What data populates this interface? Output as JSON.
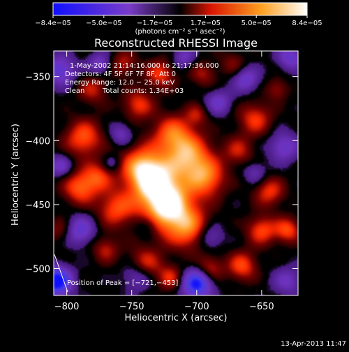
{
  "chart_data": {
    "type": "heatmap",
    "title": "Reconstructed RHESSI Image",
    "xlabel": "Heliocentric X (arcsec)",
    "ylabel": "Heliocentric Y (arcsec)",
    "xlim": [
      -810,
      -622
    ],
    "ylim": [
      -521,
      -330
    ],
    "x_ticks": [
      -800,
      -750,
      -700,
      -650
    ],
    "y_ticks": [
      -500,
      -450,
      -400,
      -350
    ],
    "x_tick_labels": [
      "−800",
      "−750",
      "−700",
      "−650"
    ],
    "y_tick_labels": [
      "−500",
      "−450",
      "−400",
      "−350"
    ],
    "colorbar": {
      "unit_label": "(photons cm⁻² s⁻¹ asec⁻²)",
      "range": [
        -8.4e-05,
        8.4e-05
      ],
      "tick_labels": [
        "−8.4e−05",
        "−5.0e−05",
        "−1.7e−05",
        "1.7e−05",
        "5.0e−05",
        "8.4e−05"
      ],
      "colors": [
        "#1010ff",
        "#7a3cc8",
        "#ff2a00",
        "#ff9a20",
        "#ffffff"
      ]
    },
    "annotations": {
      "time_range": "1-May-2002 21:14:16.000 to 21:17:36.000",
      "detectors": "Detectors: 4F 5F 6F 7F 8F, Att 0",
      "energy_range": "Energy Range: 12.0 − 25.0 keV",
      "clean": "Clean",
      "total_counts": "Total counts: 1.34E+03",
      "peak_position": "Position of Peak = [−721,−453]"
    },
    "peak": {
      "x": -721,
      "y": -453
    },
    "blobs": [
      {
        "x": -722,
        "y": -452,
        "r": 14,
        "v": 1.0
      },
      {
        "x": -733,
        "y": -431,
        "r": 13,
        "v": 0.8
      },
      {
        "x": -743,
        "y": -420,
        "r": 11,
        "v": 0.55
      },
      {
        "x": -705,
        "y": -414,
        "r": 12,
        "v": 0.7
      },
      {
        "x": -692,
        "y": -430,
        "r": 10,
        "v": 0.55
      },
      {
        "x": -718,
        "y": -396,
        "r": 11,
        "v": 0.6
      },
      {
        "x": -705,
        "y": -470,
        "r": 11,
        "v": 0.5
      },
      {
        "x": -762,
        "y": -453,
        "r": 10,
        "v": 0.5
      },
      {
        "x": -776,
        "y": -428,
        "r": 8,
        "v": 0.45
      },
      {
        "x": -787,
        "y": -398,
        "r": 10,
        "v": 0.55
      },
      {
        "x": -790,
        "y": -437,
        "r": 9,
        "v": 0.55
      },
      {
        "x": -745,
        "y": -372,
        "r": 8,
        "v": 0.45
      },
      {
        "x": -728,
        "y": -348,
        "r": 8,
        "v": 0.45
      },
      {
        "x": -695,
        "y": -348,
        "r": 7,
        "v": 0.3
      },
      {
        "x": -780,
        "y": -360,
        "r": 8,
        "v": 0.35
      },
      {
        "x": -756,
        "y": -340,
        "r": 7,
        "v": 0.35
      },
      {
        "x": -655,
        "y": -383,
        "r": 9,
        "v": 0.45
      },
      {
        "x": -668,
        "y": -408,
        "r": 8,
        "v": 0.35
      },
      {
        "x": -644,
        "y": -440,
        "r": 8,
        "v": 0.45
      },
      {
        "x": -650,
        "y": -470,
        "r": 8,
        "v": 0.5
      },
      {
        "x": -630,
        "y": -470,
        "r": 7,
        "v": 0.5
      },
      {
        "x": -665,
        "y": -498,
        "r": 8,
        "v": 0.5
      },
      {
        "x": -690,
        "y": -500,
        "r": 7,
        "v": 0.4
      },
      {
        "x": -740,
        "y": -497,
        "r": 9,
        "v": 0.5
      },
      {
        "x": -720,
        "y": -507,
        "r": 7,
        "v": 0.4
      },
      {
        "x": -770,
        "y": -485,
        "r": 7,
        "v": 0.35
      },
      {
        "x": -638,
        "y": -360,
        "r": 6,
        "v": 0.3
      },
      {
        "x": -805,
        "y": -470,
        "r": 7,
        "v": 0.25
      },
      {
        "x": -672,
        "y": -340,
        "r": 7,
        "v": 0.25
      },
      {
        "x": -700,
        "y": -380,
        "r": 6,
        "v": 0.3
      },
      {
        "x": -805,
        "y": -345,
        "r": 8,
        "v": -0.55
      },
      {
        "x": -790,
        "y": -470,
        "r": 8,
        "v": -0.5
      },
      {
        "x": -745,
        "y": -505,
        "r": 8,
        "v": -0.45
      },
      {
        "x": -690,
        "y": -475,
        "r": 7,
        "v": -0.4
      },
      {
        "x": -683,
        "y": -370,
        "r": 7,
        "v": -0.4
      },
      {
        "x": -758,
        "y": -395,
        "r": 6,
        "v": -0.35
      },
      {
        "x": -662,
        "y": -352,
        "r": 7,
        "v": -0.45
      },
      {
        "x": -633,
        "y": -405,
        "r": 8,
        "v": -0.45
      },
      {
        "x": -808,
        "y": -510,
        "r": 8,
        "v": -1.0
      },
      {
        "x": -700,
        "y": -512,
        "r": 8,
        "v": -0.9
      },
      {
        "x": -775,
        "y": -340,
        "r": 6,
        "v": -0.4
      },
      {
        "x": -738,
        "y": -466,
        "r": 6,
        "v": -0.3
      },
      {
        "x": -630,
        "y": -510,
        "r": 8,
        "v": -0.35
      },
      {
        "x": -805,
        "y": -420,
        "r": 6,
        "v": -0.4
      },
      {
        "x": -655,
        "y": -425,
        "r": 6,
        "v": -0.3
      },
      {
        "x": -710,
        "y": -335,
        "r": 6,
        "v": -0.35
      },
      {
        "x": -765,
        "y": -418,
        "r": 5,
        "v": -0.25
      },
      {
        "x": -628,
        "y": -335,
        "r": 7,
        "v": -0.45
      }
    ]
  },
  "footer": {
    "date_stamp": "13-Apr-2013 11:47"
  }
}
